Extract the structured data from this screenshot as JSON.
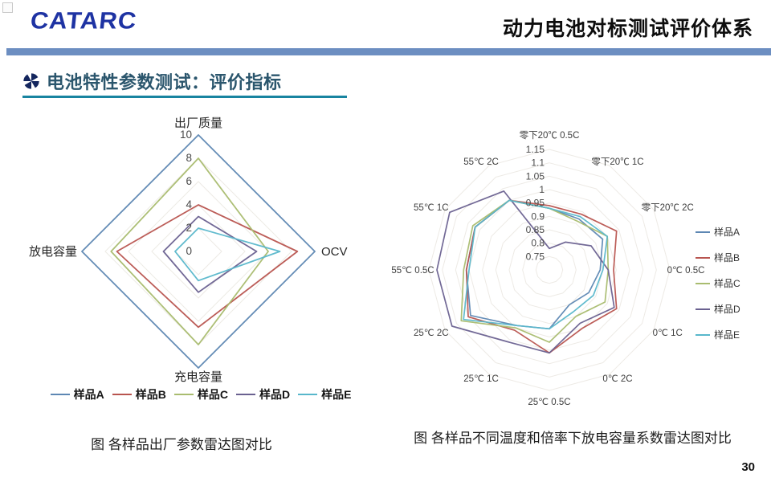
{
  "header": {
    "logo": "CATARC",
    "title": "动力电池对标测试评价体系"
  },
  "section": {
    "title": "电池特性参数测试：评价指标"
  },
  "footer": {
    "page_number": "30"
  },
  "colors": {
    "accent_bar": "#6C8EC1",
    "logo_blue": "#1E33A3",
    "section_title": "#2B566D",
    "section_underline": "#1884A0",
    "grid_line": "#EDEAE5"
  },
  "chart_data": [
    {
      "type": "radar",
      "caption": "图  各样品出厂参数雷达图对比",
      "axes": [
        "出厂质量",
        "OCV",
        "充电容量",
        "放电容量"
      ],
      "range": [
        0,
        10
      ],
      "ticks": [
        0,
        2,
        4,
        6,
        8,
        10
      ],
      "grid": true,
      "legend_position": "bottom",
      "series": [
        {
          "name": "样品A",
          "color": "#5D87B3",
          "values": [
            10,
            10,
            10,
            10
          ]
        },
        {
          "name": "样品B",
          "color": "#B8544F",
          "values": [
            4,
            8.5,
            6.5,
            7
          ]
        },
        {
          "name": "样品C",
          "color": "#A9BC6F",
          "values": [
            8,
            6,
            8,
            7.5
          ]
        },
        {
          "name": "样品D",
          "color": "#6A6190",
          "values": [
            3,
            5,
            3.5,
            3
          ]
        },
        {
          "name": "样品E",
          "color": "#58B7CB",
          "values": [
            2,
            7,
            2.5,
            2
          ]
        }
      ]
    },
    {
      "type": "radar",
      "caption": "图 各样品不同温度和倍率下放电容量系数雷达图对比",
      "axes": [
        "零下20℃ 0.5C",
        "零下20℃ 1C",
        "零下20℃ 2C",
        "0℃ 0.5C",
        "0℃ 1C",
        "0℃ 2C",
        "25℃ 0.5C",
        "25℃ 1C",
        "25℃ 2C",
        "55℃ 0.5C",
        "55℃ 1C",
        "55℃ 2C"
      ],
      "range": [
        0.7,
        1.15
      ],
      "ticks": [
        0.75,
        0.8,
        0.85,
        0.9,
        0.95,
        1,
        1.05,
        1.1,
        1.15
      ],
      "grid": true,
      "legend_position": "right",
      "series": [
        {
          "name": "样品A",
          "color": "#5D87B3",
          "values": [
            0.93,
            0.92,
            0.93,
            0.89,
            0.87,
            0.85,
            0.92,
            0.94,
            1.04,
            1.01,
            1.02,
            1.0
          ]
        },
        {
          "name": "样品B",
          "color": "#B8544F",
          "values": [
            0.94,
            0.94,
            0.99,
            0.94,
            0.99,
            0.95,
            1.01,
            0.96,
            1.05,
            1.01,
            1.02,
            1.0
          ]
        },
        {
          "name": "样品C",
          "color": "#A9BC6F",
          "values": [
            0.93,
            0.91,
            0.95,
            0.92,
            0.94,
            0.9,
            0.97,
            0.95,
            1.08,
            1.02,
            1.03,
            1.0
          ]
        },
        {
          "name": "样品D",
          "color": "#6A6190",
          "values": [
            0.78,
            0.82,
            0.88,
            0.92,
            0.98,
            0.93,
            1.01,
            1.01,
            1.12,
            1.12,
            1.13,
            1.04
          ]
        },
        {
          "name": "样品E",
          "color": "#58B7CB",
          "values": [
            0.93,
            0.93,
            0.95,
            0.9,
            0.89,
            0.88,
            0.92,
            0.94,
            1.07,
            1.0,
            1.02,
            1.0
          ]
        }
      ]
    }
  ]
}
